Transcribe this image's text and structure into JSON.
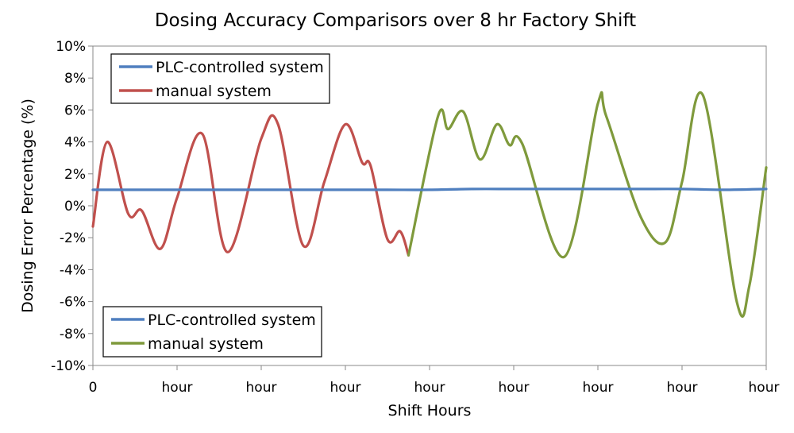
{
  "chart_data": {
    "type": "line",
    "title": "Dosing Accuracy Comparisors over 8 hr Factory Shift",
    "xlabel": "Shift Hours",
    "ylabel": "Dosing Error Percentage (%)",
    "xlim": [
      0,
      8
    ],
    "ylim": [
      -10,
      10
    ],
    "x_ticks": [
      0,
      1,
      2,
      3,
      4,
      5,
      6,
      7,
      8
    ],
    "x_tick_labels": [
      "0",
      "hour",
      "hour",
      "hour",
      "hour",
      "hour",
      "hour",
      "hour",
      "hour"
    ],
    "y_ticks": [
      -10,
      -8,
      -6,
      -4,
      -2,
      0,
      2,
      4,
      6,
      8,
      10
    ],
    "y_tick_labels": [
      "-10%",
      "-8%",
      "-6%",
      "-4%",
      "-2%",
      "0%",
      "2%",
      "4%",
      "6%",
      "8%",
      "10%"
    ],
    "grid": false,
    "colors": {
      "plc": "#4f7fbf",
      "manual_red": "#c0504d",
      "manual_green": "#7f9a3c"
    },
    "legends": [
      {
        "placement": "top-left",
        "entries": [
          {
            "label": "PLC-controlled system",
            "color": "#4f7fbf"
          },
          {
            "label": "manual system",
            "color": "#c0504d"
          }
        ]
      },
      {
        "placement": "bottom-left",
        "entries": [
          {
            "label": "PLC-controlled system",
            "color": "#4f7fbf"
          },
          {
            "label": "manual system",
            "color": "#7f9a3c"
          }
        ]
      }
    ],
    "series": [
      {
        "name": "PLC-controlled system",
        "color": "#4f7fbf",
        "x": [
          0,
          0.5,
          1,
          1.5,
          2,
          2.5,
          3,
          3.5,
          4,
          4.5,
          5,
          5.5,
          6,
          6.5,
          7,
          7.5,
          8
        ],
        "y": [
          1.0,
          1.0,
          1.0,
          1.0,
          1.0,
          1.0,
          1.0,
          1.0,
          1.0,
          1.05,
          1.05,
          1.05,
          1.05,
          1.05,
          1.05,
          1.0,
          1.05
        ]
      },
      {
        "name": "manual system",
        "color": "#c0504d",
        "x": [
          0,
          0.17,
          0.42,
          0.58,
          0.8,
          1.0,
          1.3,
          1.6,
          2.0,
          2.2,
          2.5,
          2.75,
          3.0,
          3.2,
          3.3,
          3.5,
          3.65,
          3.75
        ],
        "y": [
          -1.3,
          4.0,
          -0.5,
          -0.3,
          -2.7,
          0.5,
          4.5,
          -2.9,
          4.2,
          5.1,
          -2.5,
          1.5,
          5.1,
          2.7,
          2.5,
          -2.1,
          -1.6,
          -3.1
        ]
      },
      {
        "name": "manual system",
        "color": "#7f9a3c",
        "x": [
          3.75,
          4.1,
          4.22,
          4.4,
          4.6,
          4.8,
          4.95,
          5.1,
          5.6,
          6.0,
          6.1,
          6.5,
          6.8,
          7.0,
          7.25,
          7.65,
          7.8,
          8.0
        ],
        "y": [
          -3.1,
          5.6,
          4.8,
          5.9,
          2.9,
          5.1,
          3.8,
          3.9,
          -3.2,
          6.4,
          5.6,
          -0.6,
          -2.3,
          1.5,
          6.9,
          -6.0,
          -5.0,
          2.4
        ]
      }
    ]
  }
}
